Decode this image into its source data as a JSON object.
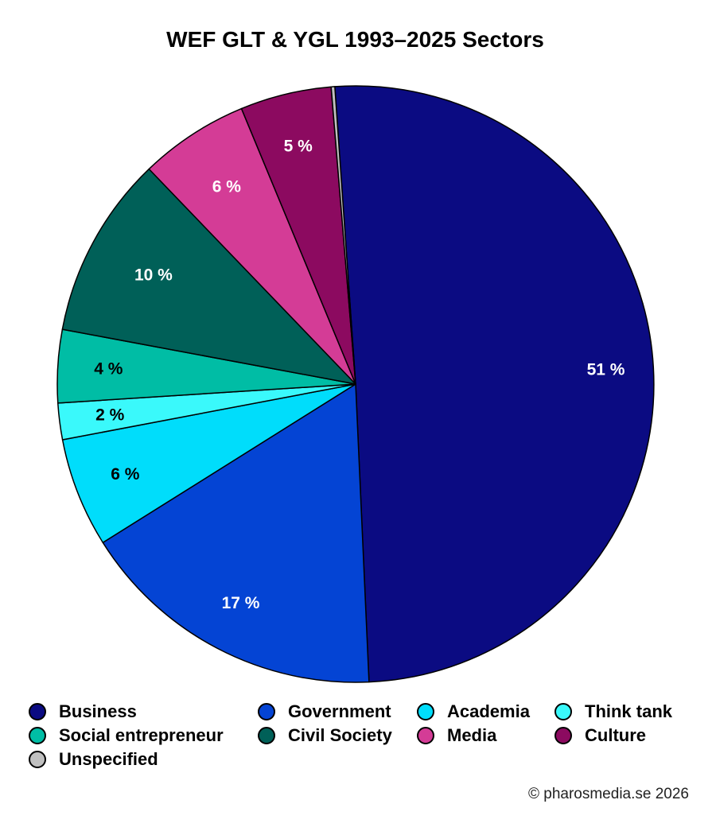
{
  "chart_data": {
    "type": "pie",
    "title": "WEF GLT & YGL 1993–2025 Sectors",
    "slices": [
      {
        "label": "Business",
        "value": 51,
        "value_label": "51 %",
        "color": "#0b0b82",
        "text_color": "#ffffff"
      },
      {
        "label": "Government",
        "value": 17,
        "value_label": "17 %",
        "color": "#0444d4",
        "text_color": "#ffffff"
      },
      {
        "label": "Academia",
        "value": 6,
        "value_label": "6 %",
        "color": "#00ddfb",
        "text_color": "#000000"
      },
      {
        "label": "Think tank",
        "value": 2,
        "value_label": "2 %",
        "color": "#3af9fb",
        "text_color": "#000000"
      },
      {
        "label": "Social entrepreneur",
        "value": 4,
        "value_label": "4 %",
        "color": "#00bda5",
        "text_color": "#000000"
      },
      {
        "label": "Civil Society",
        "value": 10,
        "value_label": "10 %",
        "color": "#006058",
        "text_color": "#ffffff"
      },
      {
        "label": "Media",
        "value": 6,
        "value_label": "6 %",
        "color": "#d43c96",
        "text_color": "#ffffff"
      },
      {
        "label": "Culture",
        "value": 5,
        "value_label": "5 %",
        "color": "#8c0a60",
        "text_color": "#ffffff"
      },
      {
        "label": "Unspecified",
        "value": 0.2,
        "value_label": "",
        "color": "#c0c0c0",
        "text_color": "#000000"
      }
    ],
    "start_angle_deg": -4,
    "direction": "clockwise",
    "legend_position": "bottom"
  },
  "credit": "© pharosmedia.se 2026"
}
